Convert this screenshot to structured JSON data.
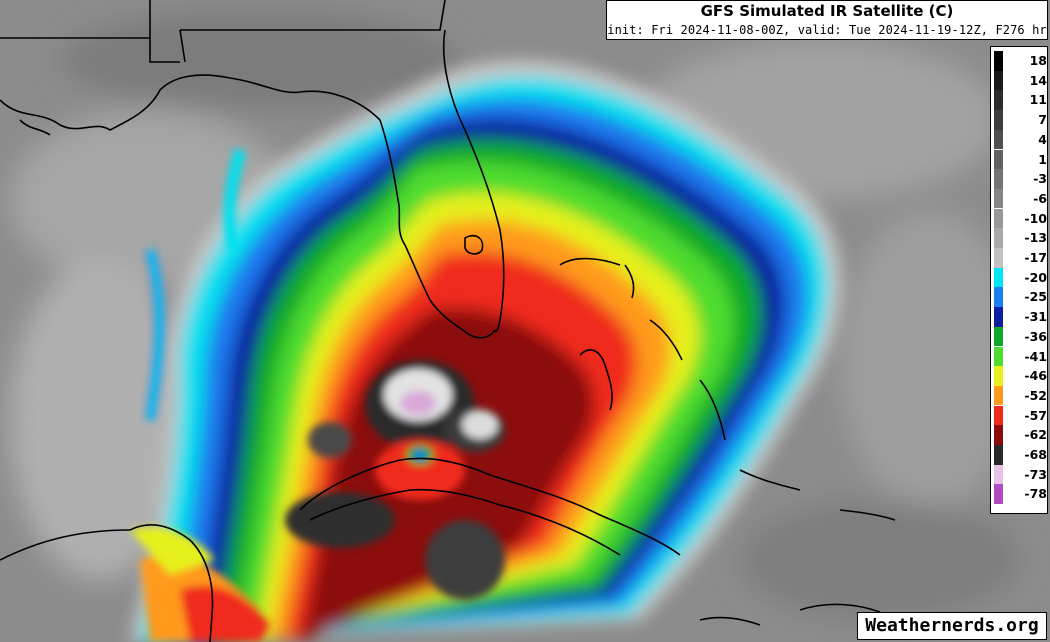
{
  "title": {
    "main": "GFS Simulated IR Satellite (C)",
    "sub": "init: Fri 2024-11-08-00Z, valid: Tue 2024-11-19-12Z, F276 hr"
  },
  "colorbar": {
    "levels": [
      {
        "label": "18",
        "color": "#000000"
      },
      {
        "label": "14",
        "color": "#1a1a1a"
      },
      {
        "label": "11",
        "color": "#2c2c2c"
      },
      {
        "label": "7",
        "color": "#3d3d3d"
      },
      {
        "label": "4",
        "color": "#4f4f4f"
      },
      {
        "label": "1",
        "color": "#626262"
      },
      {
        "label": "-3",
        "color": "#747474"
      },
      {
        "label": "-6",
        "color": "#868686"
      },
      {
        "label": "-10",
        "color": "#989898"
      },
      {
        "label": "-13",
        "color": "#aaaaaa"
      },
      {
        "label": "-17",
        "color": "#c2c2c2"
      },
      {
        "label": "-20",
        "color": "#00e5f2"
      },
      {
        "label": "-25",
        "color": "#1a7ff0"
      },
      {
        "label": "-31",
        "color": "#0d1f9e"
      },
      {
        "label": "-36",
        "color": "#10a82c"
      },
      {
        "label": "-41",
        "color": "#4ddc2f"
      },
      {
        "label": "-46",
        "color": "#e6f01c"
      },
      {
        "label": "-52",
        "color": "#ff9a1a"
      },
      {
        "label": "-57",
        "color": "#f02a1a"
      },
      {
        "label": "-62",
        "color": "#8c0c0c"
      },
      {
        "label": "-68",
        "color": "#2a2a2a"
      },
      {
        "label": "-73",
        "color": "#e6c2e6"
      },
      {
        "label": "-78",
        "color": "#b04cc0"
      }
    ]
  },
  "map": {
    "hurricane": {
      "cloud_tops": "cold, -52 to -78 C",
      "eye": "over western Cuba"
    },
    "colors": {
      "background": "#8a8a8a",
      "border": "#000000"
    }
  },
  "watermark": "Weathernerds.org"
}
